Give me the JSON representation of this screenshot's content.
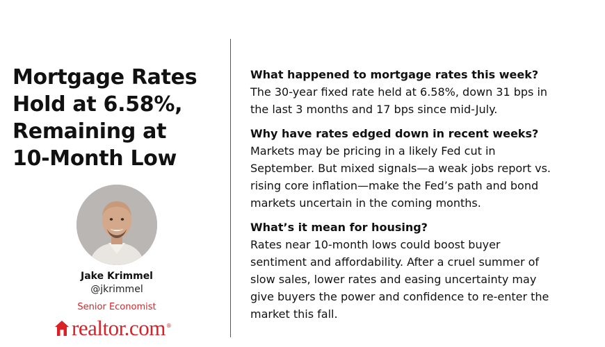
{
  "headline": {
    "lines": [
      "Mortgage Rates",
      "Hold at 6.58%,",
      "Remaining at",
      "10-Month Low"
    ]
  },
  "author": {
    "name": "Jake Krimmel",
    "handle": "@jkrimmel",
    "title": "Senior Economist"
  },
  "brand": {
    "name": "realtor.com",
    "trademark": "®",
    "color": "#d92228"
  },
  "qa": [
    {
      "question": "What happened to mortgage rates this week?",
      "answer_lines": [
        "The 30-year fixed rate held at 6.58%, down 31 bps in",
        "the last 3 months and 17 bps since mid-July."
      ]
    },
    {
      "question": "Why have rates edged down in recent weeks?",
      "answer_lines": [
        "Markets may be pricing in a likely Fed cut in",
        "September. But mixed signals—a weak jobs report vs.",
        "rising core inflation—make the Fed’s path and bond",
        "markets uncertain in the coming months."
      ]
    },
    {
      "question": "What’s it mean for housing?",
      "answer_lines": [
        "Rates near 10-month lows could boost buyer",
        "sentiment and affordability. After a cruel summer of",
        "slow sales, lower rates and easing uncertainty may",
        "give buyers the power and confidence to re-enter the",
        "market this fall."
      ]
    }
  ]
}
